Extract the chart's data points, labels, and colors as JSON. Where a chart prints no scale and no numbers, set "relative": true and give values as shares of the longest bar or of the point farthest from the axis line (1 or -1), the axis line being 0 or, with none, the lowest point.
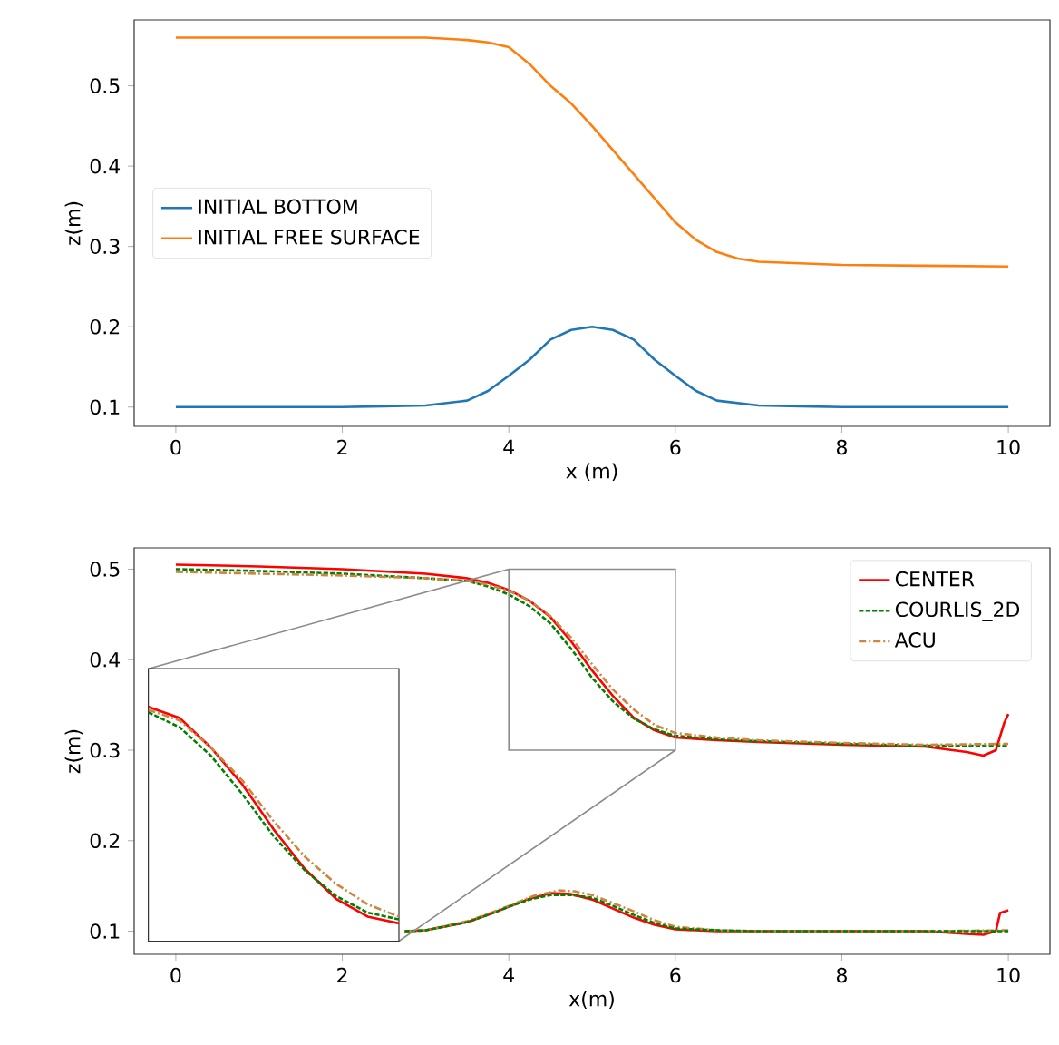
{
  "chart_data": [
    {
      "type": "line",
      "xlabel": "x (m)",
      "ylabel": "z(m)",
      "xlim": [
        -0.5,
        10.5
      ],
      "ylim": [
        0.076,
        0.582
      ],
      "xticks": [
        0,
        2,
        4,
        6,
        8,
        10
      ],
      "yticks": [
        0.1,
        0.2,
        0.3,
        0.4,
        0.5
      ],
      "legend": "left",
      "series": [
        {
          "name": "INITIAL BOTTOM",
          "color": "#1f77b4",
          "line_style": "solid",
          "x": [
            0,
            1,
            2,
            2.5,
            3,
            3.5,
            3.75,
            4,
            4.25,
            4.5,
            4.75,
            5,
            5.25,
            5.5,
            5.75,
            6,
            6.25,
            6.5,
            7,
            7.5,
            8,
            9,
            10
          ],
          "values": [
            0.1,
            0.1,
            0.1,
            0.101,
            0.102,
            0.108,
            0.12,
            0.139,
            0.159,
            0.184,
            0.196,
            0.2,
            0.196,
            0.184,
            0.159,
            0.139,
            0.12,
            0.108,
            0.102,
            0.101,
            0.1,
            0.1,
            0.1
          ]
        },
        {
          "name": "INITIAL FREE SURFACE",
          "color": "#ff7f0e",
          "line_style": "solid",
          "x": [
            0,
            1,
            2,
            3,
            3.5,
            3.75,
            4,
            4.25,
            4.5,
            4.75,
            5,
            5.25,
            5.5,
            5.75,
            6,
            6.25,
            6.5,
            6.75,
            7,
            7.5,
            8,
            9,
            10
          ],
          "values": [
            0.56,
            0.56,
            0.56,
            0.56,
            0.557,
            0.554,
            0.548,
            0.527,
            0.5,
            0.478,
            0.45,
            0.42,
            0.39,
            0.36,
            0.33,
            0.308,
            0.293,
            0.285,
            0.281,
            0.279,
            0.277,
            0.276,
            0.275
          ]
        }
      ]
    },
    {
      "type": "line",
      "xlabel": "x(m)",
      "ylabel": "z(m)",
      "xlim": [
        -0.5,
        10.5
      ],
      "ylim": [
        0.0745,
        0.5235
      ],
      "xticks": [
        0,
        2,
        4,
        6,
        8,
        10
      ],
      "yticks": [
        0.1,
        0.2,
        0.3,
        0.4,
        0.5
      ],
      "legend": "top right",
      "series": [
        {
          "name": "CENTER",
          "color": "#ff0000",
          "line_style": "solid",
          "x": [
            0,
            1,
            2,
            3,
            3.5,
            3.75,
            4,
            4.25,
            4.5,
            4.75,
            5,
            5.25,
            5.5,
            5.75,
            6,
            6.5,
            7,
            8,
            9,
            9.5,
            9.7,
            9.85,
            9.95,
            10
          ],
          "values": [
            0.505,
            0.503,
            0.5,
            0.495,
            0.49,
            0.485,
            0.477,
            0.465,
            0.447,
            0.42,
            0.388,
            0.36,
            0.336,
            0.322,
            0.314,
            0.311,
            0.309,
            0.306,
            0.304,
            0.298,
            0.294,
            0.3,
            0.33,
            0.34
          ]
        },
        {
          "name": "COURLIS_2D",
          "color": "#008000",
          "line_style": "dashed",
          "x": [
            0,
            1,
            2,
            3,
            3.5,
            3.75,
            4,
            4.25,
            4.5,
            4.75,
            5,
            5.25,
            5.5,
            5.75,
            6,
            6.5,
            7,
            8,
            9,
            10
          ],
          "values": [
            0.5,
            0.498,
            0.495,
            0.49,
            0.487,
            0.481,
            0.472,
            0.459,
            0.44,
            0.412,
            0.38,
            0.354,
            0.335,
            0.323,
            0.316,
            0.312,
            0.31,
            0.307,
            0.305,
            0.305
          ]
        },
        {
          "name": "ACU",
          "color": "#cd853f",
          "line_style": "dashdot",
          "x": [
            0,
            1,
            2,
            3,
            3.5,
            3.75,
            4,
            4.25,
            4.5,
            4.75,
            5,
            5.25,
            5.5,
            5.75,
            6,
            6.5,
            7,
            8,
            9,
            10
          ],
          "values": [
            0.497,
            0.495,
            0.493,
            0.49,
            0.487,
            0.483,
            0.476,
            0.465,
            0.448,
            0.424,
            0.395,
            0.367,
            0.345,
            0.328,
            0.319,
            0.314,
            0.311,
            0.308,
            0.306,
            0.307
          ]
        },
        {
          "color": "#ff0000",
          "line_style": "solid",
          "x": [
            2.75,
            3,
            3.5,
            3.75,
            4,
            4.25,
            4.5,
            4.75,
            5,
            5.25,
            5.5,
            5.75,
            6,
            6.5,
            7,
            8,
            9,
            9.5,
            9.7,
            9.85,
            9.9,
            10
          ],
          "values": [
            0.1,
            0.101,
            0.11,
            0.118,
            0.127,
            0.136,
            0.142,
            0.141,
            0.135,
            0.125,
            0.115,
            0.107,
            0.102,
            0.1,
            0.1,
            0.1,
            0.1,
            0.097,
            0.096,
            0.1,
            0.12,
            0.123
          ]
        },
        {
          "color": "#cd853f",
          "line_style": "dashdot",
          "x": [
            2.75,
            3,
            3.5,
            3.75,
            4,
            4.3,
            4.6,
            4.8,
            5,
            5.25,
            5.5,
            5.75,
            6,
            6.5,
            7,
            8,
            9,
            10
          ],
          "values": [
            0.1,
            0.101,
            0.111,
            0.119,
            0.128,
            0.139,
            0.145,
            0.144,
            0.14,
            0.131,
            0.122,
            0.112,
            0.105,
            0.101,
            0.1,
            0.1,
            0.1,
            0.101
          ]
        },
        {
          "color": "#008000",
          "line_style": "dashed",
          "x": [
            2.75,
            3,
            3.5,
            3.75,
            4,
            4.25,
            4.5,
            4.75,
            5,
            5.25,
            5.5,
            5.75,
            6,
            6.5,
            7,
            8,
            9,
            10
          ],
          "values": [
            0.1,
            0.101,
            0.11,
            0.118,
            0.127,
            0.135,
            0.14,
            0.14,
            0.137,
            0.128,
            0.118,
            0.109,
            0.103,
            0.101,
            0.1,
            0.1,
            0.1,
            0.1
          ]
        }
      ]
    },
    {
      "type": "line",
      "relative": true,
      "categories": [
        null,
        null,
        null,
        null,
        null,
        null,
        null,
        null,
        null
      ],
      "series": [
        {
          "color": "#ff0000",
          "line_style": "solid",
          "values": [
            1,
            0.953,
            0.826,
            0.669,
            0.477,
            0.308,
            0.18,
            0.105,
            0.076
          ]
        },
        {
          "color": "#008000",
          "line_style": "dashed",
          "values": [
            0.977,
            0.913,
            0.791,
            0.628,
            0.448,
            0.302,
            0.192,
            0.122,
            0.093
          ]
        },
        {
          "color": "#cd853f",
          "line_style": "dashdot",
          "values": [
            0.988,
            0.942,
            0.826,
            0.686,
            0.512,
            0.36,
            0.244,
            0.157,
            0.105
          ]
        }
      ]
    }
  ]
}
